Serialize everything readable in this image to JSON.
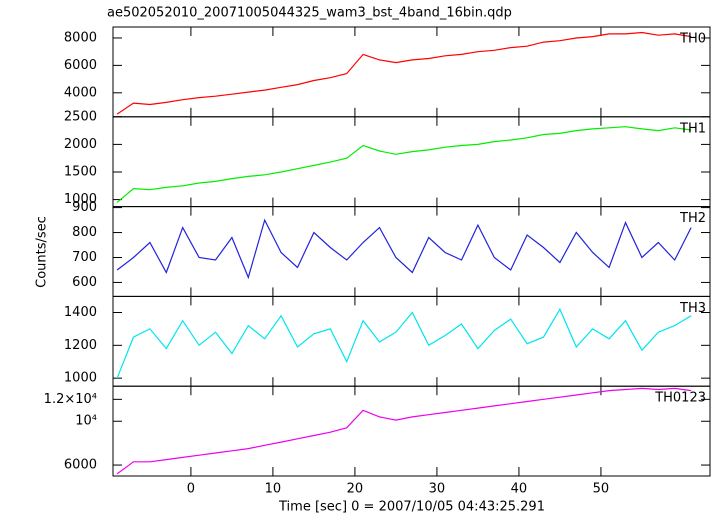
{
  "chart_data": [
    {
      "type": "line",
      "title": "ae502052010_20071005044325_wam3_bst_4band_16bin.qdp",
      "x": [
        -9,
        -7,
        -5,
        -3,
        -1,
        1,
        3,
        5,
        7,
        9,
        11,
        13,
        15,
        17,
        19,
        21,
        23,
        25,
        27,
        29,
        31,
        33,
        35,
        37,
        39,
        41,
        43,
        45,
        47,
        49,
        51,
        53,
        55,
        57,
        59,
        61
      ],
      "series": [
        {
          "name": "TH0",
          "color": "#ff0000",
          "values": [
            2450,
            3250,
            3150,
            3300,
            3500,
            3650,
            3750,
            3900,
            4050,
            4200,
            4400,
            4600,
            4900,
            5100,
            5400,
            6800,
            6400,
            6200,
            6400,
            6500,
            6700,
            6800,
            7000,
            7100,
            7300,
            7400,
            7700,
            7800,
            8000,
            8100,
            8300,
            8300,
            8400,
            8200,
            8300,
            8100
          ]
        }
      ],
      "ylim": [
        2250,
        8800
      ],
      "yticks": [
        4000,
        6000,
        8000
      ]
    },
    {
      "type": "line",
      "x": [
        -9,
        -7,
        -5,
        -3,
        -1,
        1,
        3,
        5,
        7,
        9,
        11,
        13,
        15,
        17,
        19,
        21,
        23,
        25,
        27,
        29,
        31,
        33,
        35,
        37,
        39,
        41,
        43,
        45,
        47,
        49,
        51,
        53,
        55,
        57,
        59,
        61
      ],
      "series": [
        {
          "name": "TH1",
          "color": "#00ee00",
          "values": [
            950,
            1200,
            1180,
            1220,
            1250,
            1300,
            1330,
            1380,
            1420,
            1450,
            1500,
            1560,
            1620,
            1680,
            1750,
            1980,
            1880,
            1820,
            1870,
            1900,
            1950,
            1980,
            2000,
            2050,
            2080,
            2120,
            2180,
            2200,
            2250,
            2280,
            2300,
            2320,
            2280,
            2250,
            2300,
            2260
          ]
        }
      ],
      "ylim": [
        873,
        2500
      ],
      "yticks": [
        1000,
        1500,
        2000,
        2500
      ]
    },
    {
      "type": "line",
      "ylabel": "Counts/sec",
      "x": [
        -9,
        -7,
        -5,
        -3,
        -1,
        1,
        3,
        5,
        7,
        9,
        11,
        13,
        15,
        17,
        19,
        21,
        23,
        25,
        27,
        29,
        31,
        33,
        35,
        37,
        39,
        41,
        43,
        45,
        47,
        49,
        51,
        53,
        55,
        57,
        59,
        61
      ],
      "series": [
        {
          "name": "TH2",
          "color": "#2222dd",
          "values": [
            650,
            700,
            760,
            640,
            820,
            700,
            690,
            780,
            620,
            850,
            720,
            660,
            800,
            740,
            690,
            760,
            820,
            700,
            640,
            780,
            720,
            690,
            830,
            700,
            650,
            790,
            740,
            680,
            800,
            720,
            660,
            840,
            700,
            760,
            690,
            820
          ]
        }
      ],
      "ylim": [
        544,
        904
      ],
      "yticks": [
        600,
        700,
        800,
        900
      ]
    },
    {
      "type": "line",
      "x": [
        -9,
        -7,
        -5,
        -3,
        -1,
        1,
        3,
        5,
        7,
        9,
        11,
        13,
        15,
        17,
        19,
        21,
        23,
        25,
        27,
        29,
        31,
        33,
        35,
        37,
        39,
        41,
        43,
        45,
        47,
        49,
        51,
        53,
        55,
        57,
        59,
        61
      ],
      "series": [
        {
          "name": "TH3",
          "color": "#00e5ee",
          "values": [
            1000,
            1250,
            1300,
            1180,
            1350,
            1200,
            1280,
            1150,
            1320,
            1240,
            1380,
            1190,
            1270,
            1300,
            1100,
            1350,
            1220,
            1280,
            1400,
            1200,
            1260,
            1330,
            1180,
            1290,
            1360,
            1210,
            1250,
            1420,
            1190,
            1300,
            1240,
            1350,
            1170,
            1280,
            1320,
            1380
          ]
        }
      ],
      "ylim": [
        951,
        1498
      ],
      "yticks": [
        1000,
        1200,
        1400
      ]
    },
    {
      "type": "line",
      "xlabel": "Time [sec] 0 = 2007/10/05 04:43:25.291",
      "x": [
        -9,
        -7,
        -5,
        -3,
        -1,
        1,
        3,
        5,
        7,
        9,
        11,
        13,
        15,
        17,
        19,
        21,
        23,
        25,
        27,
        29,
        31,
        33,
        35,
        37,
        39,
        41,
        43,
        45,
        47,
        49,
        51,
        53,
        55,
        57,
        59,
        61
      ],
      "series": [
        {
          "name": "TH0123",
          "color": "#ee00ee",
          "values": [
            5200,
            6300,
            6300,
            6500,
            6700,
            6900,
            7100,
            7300,
            7500,
            7800,
            8100,
            8400,
            8700,
            9000,
            9400,
            11000,
            10400,
            10100,
            10400,
            10600,
            10800,
            11000,
            11200,
            11400,
            11600,
            11800,
            12000,
            12200,
            12400,
            12600,
            12800,
            12900,
            13000,
            12900,
            13000,
            12800
          ]
        }
      ],
      "ylim": [
        5000,
        13200
      ],
      "yticks": [
        6000,
        {
          "value": 10000,
          "label": "10⁴"
        },
        {
          "value": 12000,
          "label": "1.2×10⁴"
        }
      ],
      "xlim": [
        -9.5,
        63.3
      ],
      "xticks": [
        0,
        10,
        20,
        30,
        40,
        50
      ]
    }
  ]
}
